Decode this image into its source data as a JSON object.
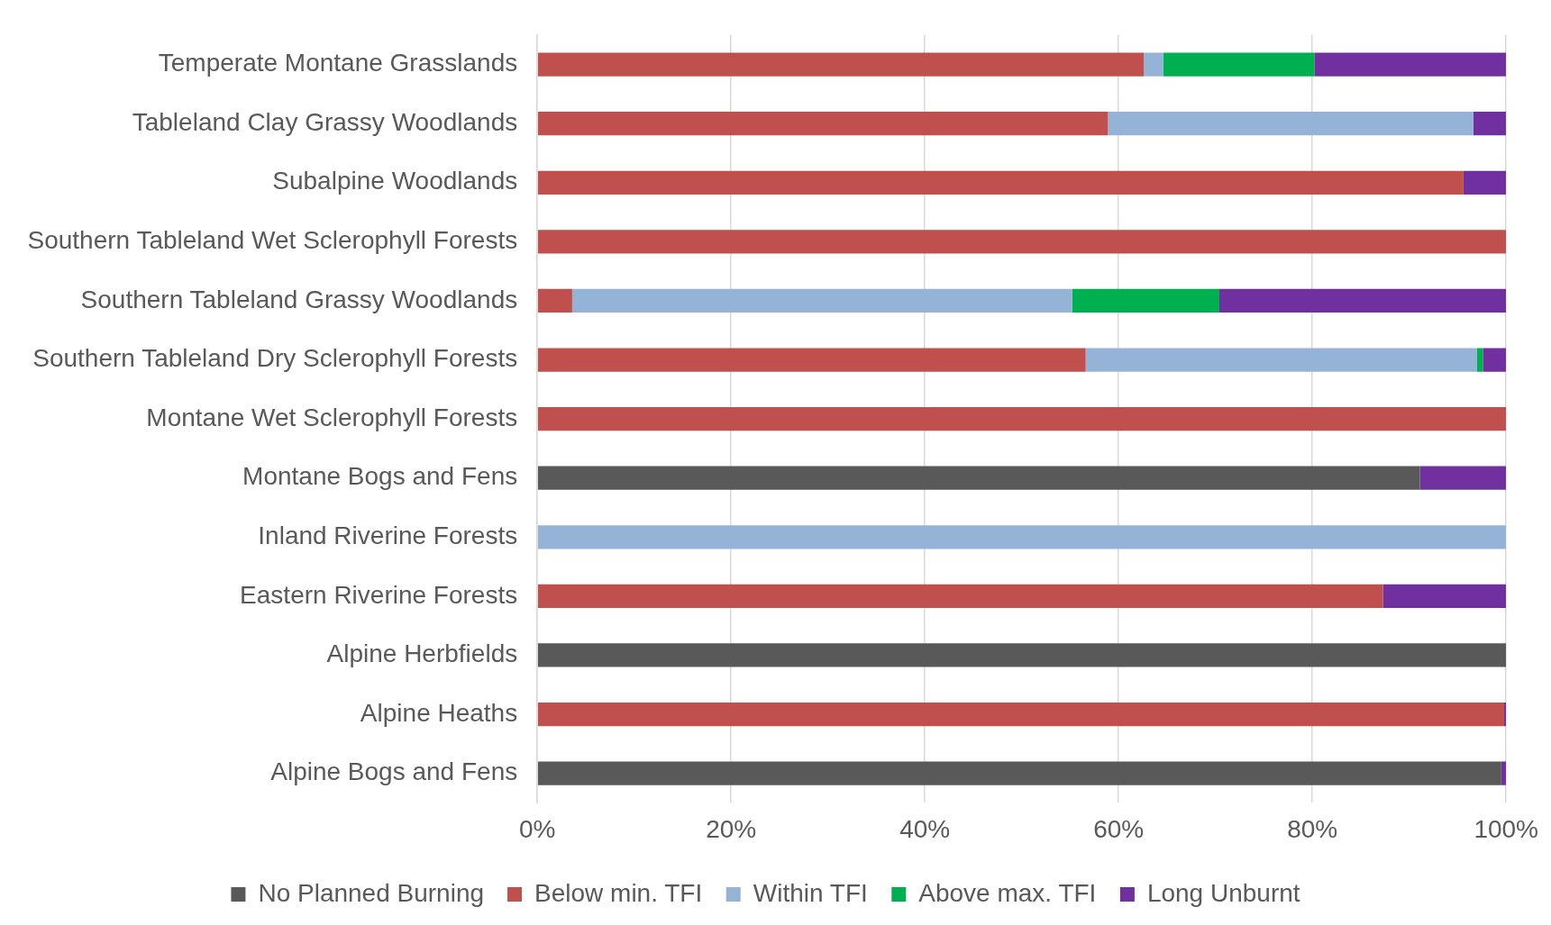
{
  "chart_data": {
    "type": "bar",
    "orientation": "horizontal",
    "stacked": true,
    "categories": [
      "Temperate Montane Grasslands",
      "Tableland Clay Grassy Woodlands",
      "Subalpine Woodlands",
      "Southern Tableland Wet Sclerophyll Forests",
      "Southern Tableland Grassy Woodlands",
      "Southern Tableland Dry Sclerophyll Forests",
      "Montane Wet Sclerophyll Forests",
      "Montane Bogs and Fens",
      "Inland Riverine Forests",
      "Eastern Riverine Forests",
      "Alpine Herbfields",
      "Alpine Heaths",
      "Alpine Bogs and Fens"
    ],
    "series": [
      {
        "name": "No Planned Burning",
        "color": "#595959",
        "values": [
          0,
          0,
          0,
          0,
          0,
          0,
          0,
          91.1,
          0,
          0,
          100,
          0,
          99.5
        ]
      },
      {
        "name": "Below min. TFI",
        "color": "#c0504d",
        "values": [
          62.6,
          58.9,
          95.6,
          100,
          3.6,
          56.6,
          100,
          0,
          0,
          87.3,
          0,
          99.8,
          0
        ]
      },
      {
        "name": "Within TFI",
        "color": "#95b3d7",
        "values": [
          2.0,
          37.7,
          0,
          0,
          51.6,
          40.4,
          0,
          0,
          100,
          0,
          0,
          0,
          0
        ]
      },
      {
        "name": "Above max. TFI",
        "color": "#00b050",
        "values": [
          15.6,
          0,
          0,
          0,
          15.2,
          0.6,
          0,
          0,
          0,
          0,
          0,
          0,
          0
        ]
      },
      {
        "name": "Long Unburnt",
        "color": "#7030a0",
        "values": [
          19.8,
          3.4,
          4.4,
          0,
          29.6,
          2.4,
          0,
          8.9,
          0,
          12.7,
          0,
          0.2,
          0.5
        ]
      }
    ],
    "xlim": [
      0,
      100
    ],
    "xticks": [
      {
        "value": 0,
        "label": "0%"
      },
      {
        "value": 20,
        "label": "20%"
      },
      {
        "value": 40,
        "label": "40%"
      },
      {
        "value": 60,
        "label": "60%"
      },
      {
        "value": 80,
        "label": "80%"
      },
      {
        "value": 100,
        "label": "100%"
      }
    ],
    "grid": "x",
    "legend": "bottom"
  }
}
